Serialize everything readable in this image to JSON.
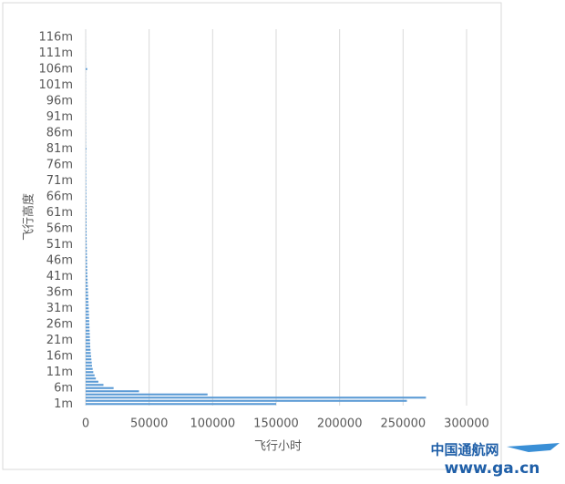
{
  "chart_data": {
    "type": "hbar",
    "x_label": "飞行小时",
    "y_label": "飞行高度",
    "categories": [
      "1m",
      null,
      null,
      null,
      null,
      "6m",
      null,
      null,
      null,
      null,
      "11m",
      null,
      null,
      null,
      null,
      "16m",
      null,
      null,
      null,
      null,
      "21m",
      null,
      null,
      null,
      null,
      "26m",
      null,
      null,
      null,
      null,
      "31m",
      null,
      null,
      null,
      null,
      "36m",
      null,
      null,
      null,
      null,
      "41m",
      null,
      null,
      null,
      null,
      "46m",
      null,
      null,
      null,
      null,
      "51m",
      null,
      null,
      null,
      null,
      "56m",
      null,
      null,
      null,
      null,
      "61m",
      null,
      null,
      null,
      null,
      "66m",
      null,
      null,
      null,
      null,
      "71m",
      null,
      null,
      null,
      null,
      "76m",
      null,
      null,
      null,
      null,
      "81m",
      null,
      null,
      null,
      null,
      "86m",
      null,
      null,
      null,
      null,
      "91m",
      null,
      null,
      null,
      null,
      "96m",
      null,
      null,
      null,
      null,
      "101m",
      null,
      null,
      null,
      null,
      "106m",
      null,
      null,
      null,
      null,
      "111m",
      null,
      null,
      null,
      null,
      "116m",
      null,
      null
    ],
    "values": [
      150000,
      253000,
      268000,
      96000,
      42000,
      22000,
      14000,
      10000,
      8000,
      7000,
      6000,
      5500,
      5000,
      4800,
      4500,
      4300,
      4000,
      3800,
      3600,
      3500,
      3400,
      3300,
      3200,
      3100,
      3000,
      2900,
      2800,
      2700,
      2600,
      2500,
      2400,
      2300,
      2200,
      2100,
      2000,
      1900,
      1800,
      1700,
      1600,
      1500,
      1400,
      1300,
      1250,
      1200,
      1150,
      1100,
      1050,
      1000,
      950,
      900,
      850,
      800,
      780,
      760,
      740,
      720,
      700,
      680,
      660,
      640,
      620,
      600,
      580,
      560,
      540,
      520,
      500,
      480,
      460,
      440,
      420,
      400,
      380,
      360,
      340,
      320,
      300,
      280,
      260,
      240,
      600,
      220,
      210,
      200,
      190,
      180,
      170,
      160,
      150,
      140,
      130,
      120,
      110,
      100,
      100,
      100,
      100,
      100,
      100,
      100,
      100,
      100,
      100,
      100,
      100,
      1200,
      100,
      80,
      60,
      50,
      50,
      50,
      50,
      50,
      40,
      40,
      30,
      30
    ],
    "color": "#5b9bd5",
    "xlim": [
      0,
      300000
    ],
    "xticks": [
      0,
      50000,
      100000,
      150000,
      200000,
      250000,
      300000
    ],
    "grid": true
  },
  "watermark": {
    "name": "中国通航网",
    "url": "www.ga.cn"
  }
}
